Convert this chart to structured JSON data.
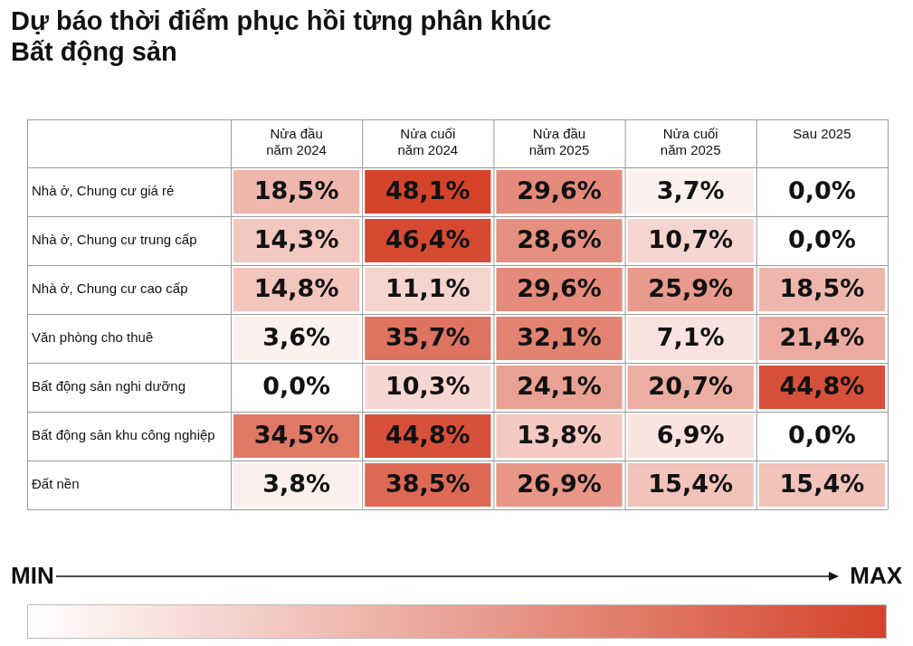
{
  "chart_data": {
    "type": "heatmap",
    "title": "Dự báo thời điểm phục hồi từng phân khúc Bất động sản",
    "categories": [
      "Nửa đầu năm 2024",
      "Nửa cuối năm 2024",
      "Nửa đầu năm 2025",
      "Nửa cuối năm 2025",
      "Sau 2025"
    ],
    "y_categories": [
      "Nhà ở, Chung cư giá rẻ",
      "Nhà ở, Chung cư trung cấp",
      "Nhà ở, Chung cư cao cấp",
      "Văn phòng cho thuê",
      "Bất động sản nghi dưỡng",
      "Bất động sản khu công nghiệp",
      "Đất nền"
    ],
    "cells": [
      [
        18.5,
        48.1,
        29.6,
        3.7,
        0.0
      ],
      [
        14.3,
        46.4,
        28.6,
        10.7,
        0.0
      ],
      [
        14.8,
        11.1,
        29.6,
        25.9,
        18.5
      ],
      [
        3.6,
        35.7,
        32.1,
        7.1,
        21.4
      ],
      [
        0.0,
        10.3,
        24.1,
        20.7,
        44.8
      ],
      [
        34.5,
        44.8,
        13.8,
        6.9,
        0.0
      ],
      [
        3.8,
        38.5,
        26.9,
        15.4,
        15.4
      ]
    ],
    "cell_labels": [
      [
        "18,5%",
        "48,1%",
        "29,6%",
        "3,7%",
        "0,0%"
      ],
      [
        "14,3%",
        "46,4%",
        "28,6%",
        "10,7%",
        "0,0%"
      ],
      [
        "14,8%",
        "11,1%",
        "29,6%",
        "25,9%",
        "18,5%"
      ],
      [
        "3,6%",
        "35,7%",
        "32,1%",
        "7,1%",
        "21,4%"
      ],
      [
        "0,0%",
        "10,3%",
        "24,1%",
        "20,7%",
        "44,8%"
      ],
      [
        "34,5%",
        "44,8%",
        "13,8%",
        "6,9%",
        "0,0%"
      ],
      [
        "3,8%",
        "38,5%",
        "26,9%",
        "15,4%",
        "15,4%"
      ]
    ],
    "clim": [
      0,
      48.1
    ],
    "cticks": [
      {
        "value": 0,
        "label": "MIN"
      },
      {
        "value": 48.1,
        "label": "MAX"
      }
    ],
    "colors": [
      "#ffffff",
      "#d4432a"
    ]
  }
}
